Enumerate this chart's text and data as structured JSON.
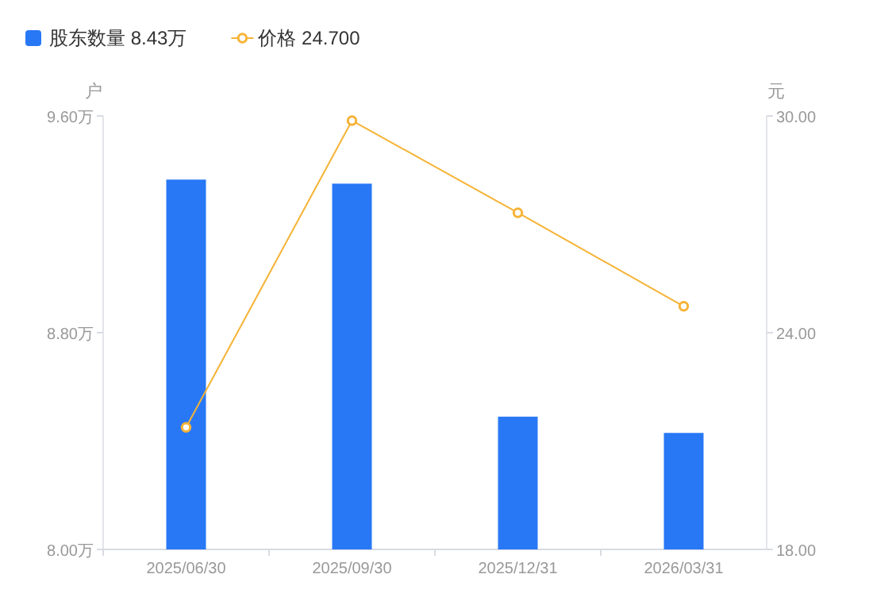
{
  "chart_data": {
    "type": "bar",
    "categories": [
      "2025/06/30",
      "2025/09/30",
      "2025/12/31",
      "2026/03/31"
    ],
    "series": [
      {
        "name": "股东数量 8.43万",
        "color": "#2878f6",
        "values": [
          9.365,
          9.35,
          8.49,
          8.43
        ]
      },
      {
        "name": "价格 24.700",
        "type": "line",
        "axis": "y2",
        "color": "#f5b335",
        "values": [
          21.38,
          29.87,
          27.32,
          24.73
        ]
      }
    ],
    "ylabel": "户",
    "y2label": "元",
    "ylim": [
      8.0,
      9.6
    ],
    "yticks": [
      {
        "value": 8.0,
        "label": "8.00万"
      },
      {
        "value": 8.8,
        "label": "8.80万"
      },
      {
        "value": 9.6,
        "label": "9.60万"
      }
    ],
    "y2lim": [
      18,
      30
    ],
    "y2ticks": [
      {
        "value": 18,
        "label": "18.00"
      },
      {
        "value": 24,
        "label": "24.00"
      },
      {
        "value": 30,
        "label": "30.00"
      }
    ],
    "legend": "top left",
    "grid": false,
    "marker": "circle",
    "line_style": "solid"
  }
}
